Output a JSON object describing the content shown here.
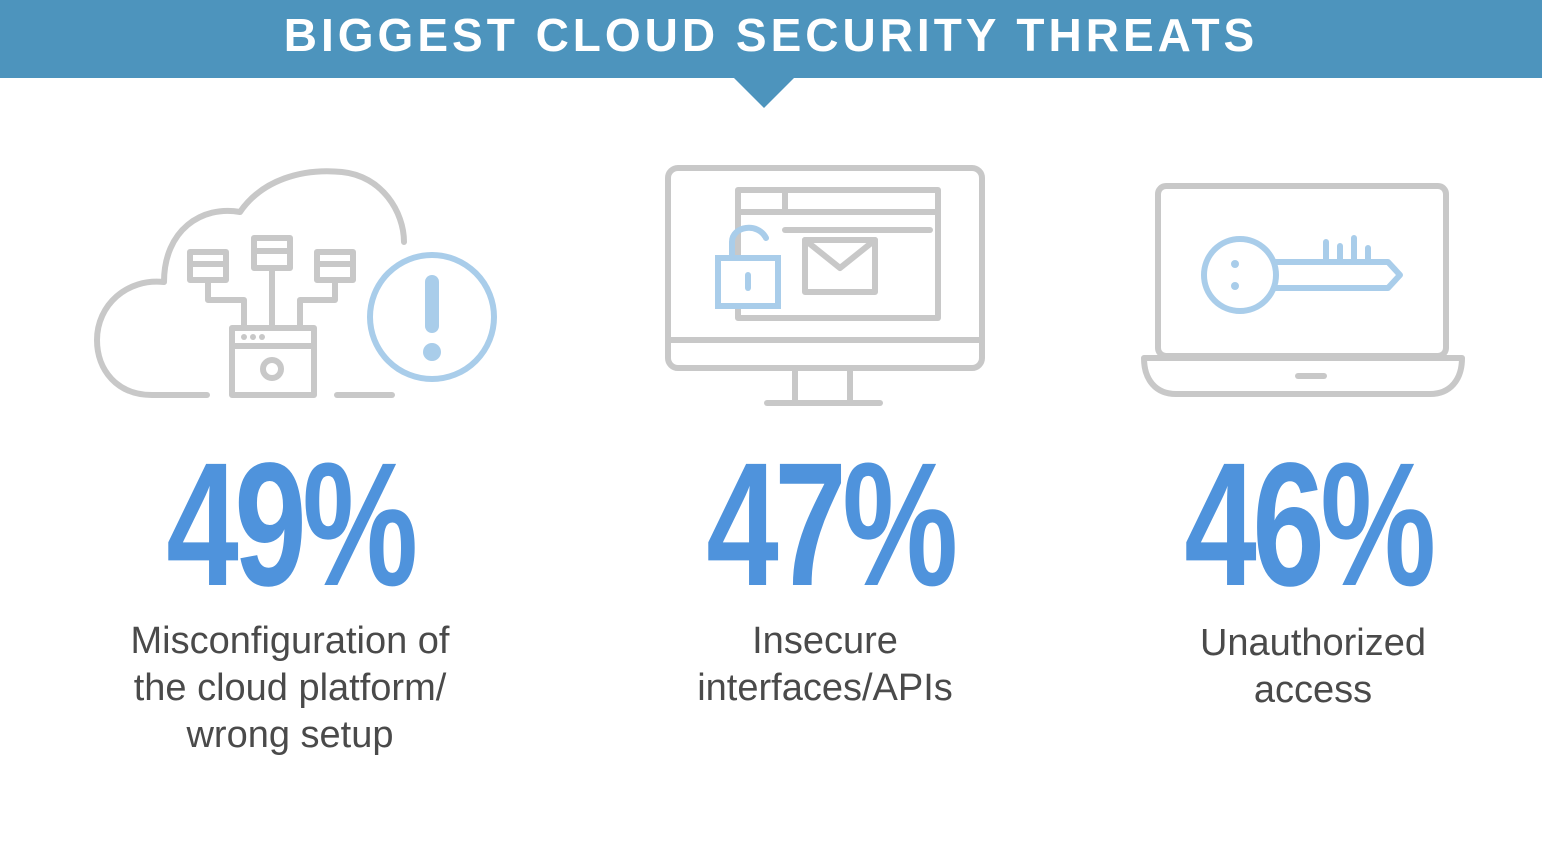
{
  "header": {
    "title": "BIGGEST CLOUD SECURITY THREATS"
  },
  "colors": {
    "banner": "#4d94bd",
    "accent_blue": "#4f93dc",
    "icon_gray": "#c8c8c8",
    "icon_blue": "#a9cdea",
    "text": "#4a4a4a"
  },
  "chart_data": {
    "type": "table",
    "title": "BIGGEST CLOUD SECURITY THREATS",
    "unit": "%",
    "items": [
      {
        "value_label": "49%",
        "value": 49,
        "icon": "cloud-warning-icon",
        "label_lines": [
          "Misconfiguration of",
          "the cloud platform/",
          "wrong setup"
        ]
      },
      {
        "value_label": "47%",
        "value": 47,
        "icon": "monitor-lock-mail-icon",
        "label_lines": [
          "Insecure",
          "interfaces/APIs"
        ]
      },
      {
        "value_label": "46%",
        "value": 46,
        "icon": "laptop-key-icon",
        "label_lines": [
          "Unauthorized",
          "access"
        ]
      }
    ]
  }
}
